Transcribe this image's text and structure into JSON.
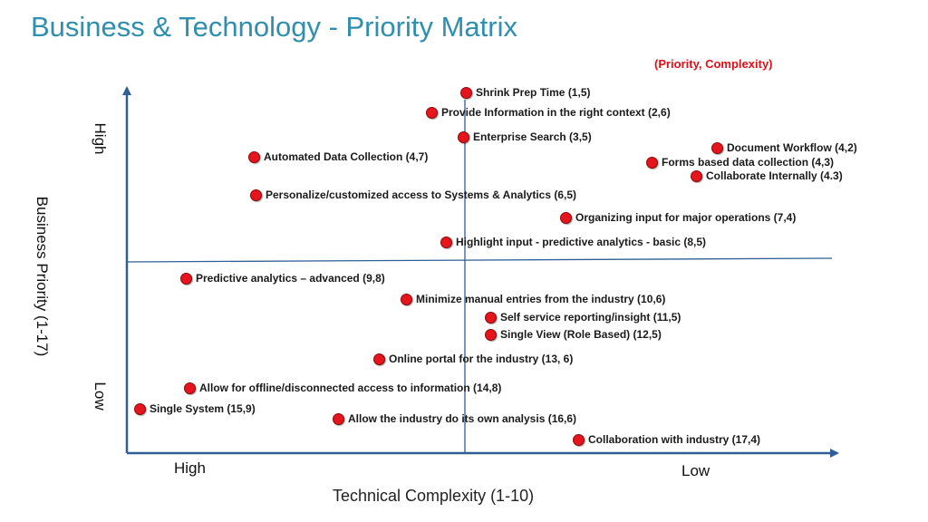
{
  "title": "Business & Technology - Priority Matrix",
  "legend_note": "(Priority, Complexity)",
  "axes": {
    "y_label": "Business Priority (1-17)",
    "y_high": "High",
    "y_low": "Low",
    "x_label": "Technical Complexity (1-10)",
    "x_high": "High",
    "x_low": "Low"
  },
  "colors": {
    "title": "#2e8fae",
    "axis": "#2f5f96",
    "point": "#e5141d",
    "note": "#e0101a"
  },
  "items": [
    {
      "label": "Shrink Prep Time (1,5)",
      "priority": 1,
      "complexity": 5
    },
    {
      "label": "Provide Information in the right context (2,6)",
      "priority": 2,
      "complexity": 6
    },
    {
      "label": "Enterprise Search (3,5)",
      "priority": 3,
      "complexity": 5
    },
    {
      "label": "Document Workflow (4,2)",
      "priority": 4,
      "complexity": 2
    },
    {
      "label": "Forms based data collection (4,3)",
      "priority": 4,
      "complexity": 3
    },
    {
      "label": "Collaborate Internally (4.3)",
      "priority": 4,
      "complexity": 3
    },
    {
      "label": "Automated Data Collection (4,7)",
      "priority": 4,
      "complexity": 7
    },
    {
      "label": "Personalize/customized access to Systems & Analytics (6,5)",
      "priority": 6,
      "complexity": 5
    },
    {
      "label": "Organizing input for major operations (7,4)",
      "priority": 7,
      "complexity": 4
    },
    {
      "label": "Highlight input - predictive analytics  - basic (8,5)",
      "priority": 8,
      "complexity": 5
    },
    {
      "label": "Predictive analytics – advanced (9,8)",
      "priority": 9,
      "complexity": 8
    },
    {
      "label": "Minimize manual entries from the industry (10,6)",
      "priority": 10,
      "complexity": 6
    },
    {
      "label": "Self service reporting/insight (11,5)",
      "priority": 11,
      "complexity": 5
    },
    {
      "label": "Single View (Role Based) (12,5)",
      "priority": 12,
      "complexity": 5
    },
    {
      "label": "Online portal for the industry (13, 6)",
      "priority": 13,
      "complexity": 6
    },
    {
      "label": "Allow for offline/disconnected access to information (14,8)",
      "priority": 14,
      "complexity": 8
    },
    {
      "label": "Single System (15,9)",
      "priority": 15,
      "complexity": 9
    },
    {
      "label": "Allow the industry do its own analysis (16,6)",
      "priority": 16,
      "complexity": 6
    },
    {
      "label": "Collaboration with industry (17,4)",
      "priority": 17,
      "complexity": 4
    }
  ]
}
